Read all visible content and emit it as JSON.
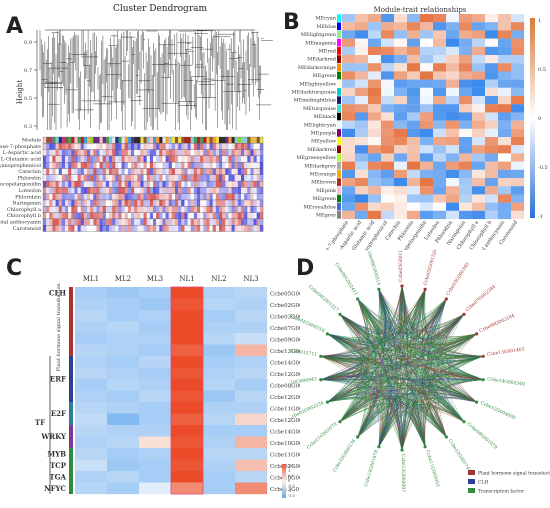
{
  "panelA": {
    "letter": "A",
    "title": "Cluster Dendrogram",
    "ylabel": "Height",
    "yticks": [
      "0.9",
      "0.7",
      "0.5",
      "0.3"
    ],
    "traits": [
      "Module",
      "D-Sedoheptulose-7-phosphate",
      "L-Aspartic acid",
      "L-Glutamic acid",
      "Cyanoprophenicol",
      "Catechin",
      "Phloretin",
      "Leucopelargonidin",
      "Luteolon",
      "Phloridzin",
      "Naringenin",
      "Chlorophyll a",
      "Chlorophyll b",
      "Total anthocyanin",
      "Carotenoid"
    ]
  },
  "panelB": {
    "letter": "B",
    "title": "Module-trait relationships",
    "modules": [
      "MEcyan",
      "MEblue",
      "MElightgreen",
      "MEmagenta",
      "MEred",
      "MEdarkred",
      "MEdarkorange",
      "MEgreen",
      "MElightyellow",
      "MEdarkturquoise",
      "MEmidnightblue",
      "MEturquoise",
      "MEblack",
      "MElightcyan",
      "MEpurple",
      "MEyellow",
      "MEdarkred",
      "MEgreenyellow",
      "MEdarkgrey",
      "MEorange",
      "MEbrown",
      "MEpink",
      "MEgreen",
      "MEroyalblue",
      "MEgrey"
    ],
    "traits": [
      "D-Sedoheptulose-7-phosphate",
      "L-Aspartic acid",
      "L-Glutamic acid",
      "Cyanoprophenicol",
      "Catechin",
      "Phloretin",
      "Leucopelargonidin",
      "Luteolon",
      "Phloridzin",
      "Naringenin",
      "Chlorophyll a",
      "Chlorophyll b",
      "Total anthocyanin",
      "Carotenoid"
    ],
    "colorbar": [
      "1",
      "0.5",
      "0",
      "-0.5",
      "-1"
    ]
  },
  "panelC": {
    "letter": "C",
    "columns": [
      "ML1",
      "ML2",
      "ML3",
      "NL1",
      "NL2",
      "NL3"
    ],
    "genes": [
      "Ccbe05G001105",
      "Ccbe02G001526",
      "Ccbe03G000340",
      "Ccbe07G002344",
      "Ccbe09G002104",
      "Ccbe13G001403",
      "Ccbe14G002349",
      "Ccbe12G004809",
      "Ccbe08G001079",
      "Ccbe12G001743",
      "Ccbe11G005052",
      "Ccbe12G002097",
      "Ccbe14G001878",
      "Ccbe10G000136",
      "Ccbe11G002078",
      "Ccbe02G002534",
      "Ccbe10G000943",
      "Ccbe13G012711"
    ],
    "families": {
      "CLH": "CLH",
      "PH": "Plant hormone signal transduction",
      "ERF": "ERF",
      "E2F": "E2F",
      "WRKY": "WRKY",
      "MYB": "MYB",
      "TCP": "TCP",
      "TGA": "TGA",
      "NFYC": "NFYC",
      "TF": "TF"
    },
    "colorbar": [
      "1.5",
      "1",
      "0.5",
      "0",
      "-0.5",
      "-1",
      "-1.5"
    ],
    "matrix": [
      [
        -0.8,
        -0.9,
        -0.8,
        1.6,
        -0.7,
        -0.6
      ],
      [
        -0.7,
        -0.8,
        -0.9,
        1.5,
        -0.6,
        -0.7
      ],
      [
        -0.6,
        -0.8,
        -0.7,
        1.6,
        -0.8,
        -0.6
      ],
      [
        -0.7,
        -0.6,
        -0.8,
        1.6,
        -0.7,
        -0.7
      ],
      [
        -0.8,
        -0.7,
        -0.7,
        1.6,
        -0.6,
        -0.4
      ],
      [
        -0.6,
        -0.7,
        -0.8,
        1.4,
        -0.9,
        0.6
      ],
      [
        -0.7,
        -0.8,
        -0.6,
        1.6,
        -0.8,
        -0.7
      ],
      [
        -0.6,
        -0.7,
        -0.8,
        1.5,
        -0.7,
        -0.6
      ],
      [
        -0.8,
        -0.6,
        -0.7,
        1.6,
        -0.6,
        -0.8
      ],
      [
        -0.7,
        -0.8,
        -0.6,
        1.5,
        -0.9,
        -0.6
      ],
      [
        -0.6,
        -0.7,
        -0.8,
        1.6,
        -0.7,
        -0.7
      ],
      [
        -0.5,
        -1.2,
        -0.8,
        1.4,
        -0.6,
        0.3
      ],
      [
        -0.6,
        -0.7,
        -0.7,
        1.6,
        -0.8,
        -0.8
      ],
      [
        -0.7,
        -0.6,
        0.2,
        1.5,
        -0.7,
        0.6
      ],
      [
        -0.6,
        -0.8,
        -0.7,
        1.6,
        -0.6,
        -0.6
      ],
      [
        -0.4,
        -0.9,
        -0.8,
        1.5,
        -0.7,
        0.5
      ],
      [
        -0.7,
        -0.6,
        -0.8,
        1.6,
        -0.8,
        -0.6
      ],
      [
        -0.6,
        -0.8,
        -0.1,
        1.0,
        -0.8,
        1.0
      ]
    ]
  },
  "panelD": {
    "letter": "D",
    "legend": [
      "Plant hormone signal transduction",
      "CLH",
      "Transcription factor"
    ],
    "legend_colors": [
      "#a0342f",
      "#2b3f9a",
      "#2e8b3f"
    ],
    "nodes": [
      "Ccbe05G001105",
      "Ccbe02G001526",
      "Ccbe03G000340",
      "Ccbe07G002344",
      "Ccbe09G002104",
      "Ccbe13G001403",
      "Ccbe14G002349",
      "Ccbe12G004809",
      "Ccbe08G001079",
      "Ccbe12G001743",
      "Ccbe11G005052",
      "Ccbe12G002097",
      "Ccbe14G001878",
      "Ccbe10G000136",
      "Ccbe11G002078",
      "Ccbe02G002534",
      "Ccbe10G000943",
      "Ccbe13G012711",
      "Ccbe01G000318",
      "Ccbe04G001227",
      "Ccbe06G002411",
      "Ccbe08G000514"
    ]
  }
}
